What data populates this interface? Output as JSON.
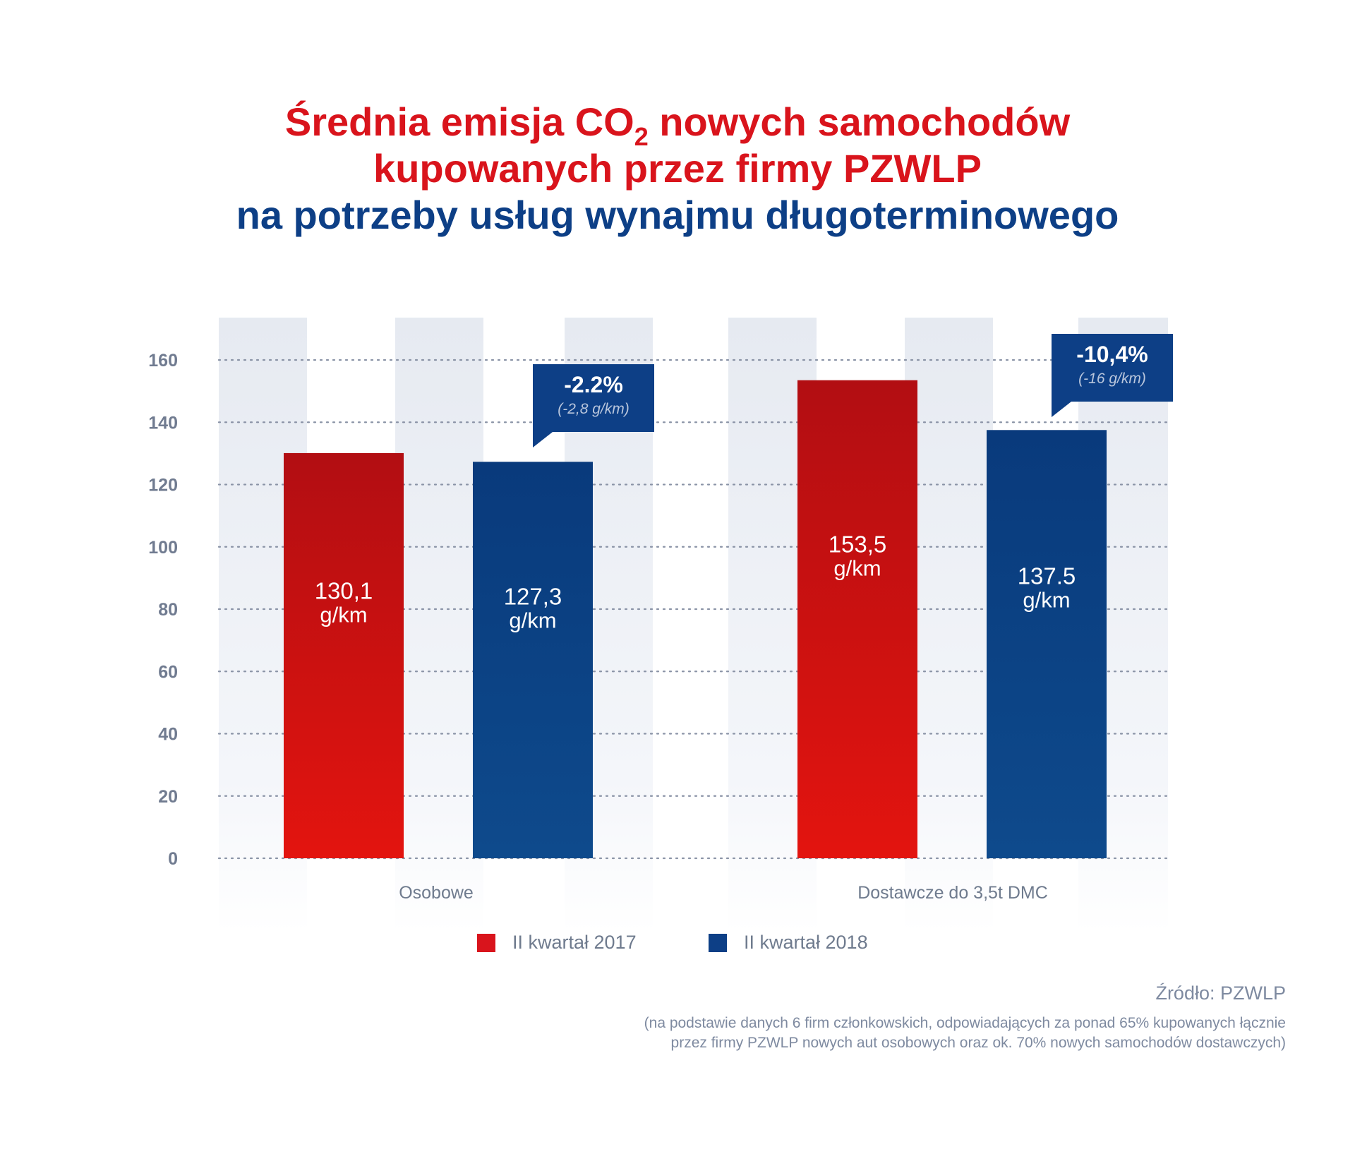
{
  "title": {
    "line1_pre": "Średnia emisja CO",
    "line1_sub": "2",
    "line1_post": " nowych samochodów",
    "line2": "kupowanych przez firmy PZWLP",
    "line3": "na potrzeby usług wynajmu długoterminowego"
  },
  "colors": {
    "title_red": "#d9141c",
    "title_blue": "#0d3f86",
    "series_2017": "#d9141c",
    "series_2018": "#0d3f86"
  },
  "legend": {
    "item1": "II kwartał 2017",
    "item2": "II kwartał 2018"
  },
  "source": {
    "line1": "Źródło: PZWLP",
    "line2": "(na podstawie danych 6 firm członkowskich, odpowiadających za ponad 65% kupowanych łącznie",
    "line3": "przez firmy PZWLP nowych aut osobowych oraz ok. 70% nowych samochodów dostawczych)"
  },
  "chart_data": {
    "type": "bar",
    "categories": [
      "Osobowe",
      "Dostawcze do 3,5t DMC"
    ],
    "series": [
      {
        "name": "II kwartał 2017",
        "values": [
          130.1,
          153.5
        ],
        "labels": [
          "130,1",
          "153,5"
        ],
        "color": "#d9141c"
      },
      {
        "name": "II kwartał 2018",
        "values": [
          127.3,
          137.5
        ],
        "labels": [
          "127,3",
          "137.5"
        ],
        "color": "#0d3f86"
      }
    ],
    "unit": "g/km",
    "ylim": [
      0,
      170
    ],
    "yticks": [
      0,
      20,
      40,
      60,
      80,
      100,
      120,
      140,
      160
    ],
    "grid": true,
    "legend_position": "bottom",
    "annotations": [
      {
        "category": "Osobowe",
        "main": "-2.2%",
        "detail": "(-2,8 g/km)"
      },
      {
        "category": "Dostawcze do 3,5t DMC",
        "main": "-10,4%",
        "detail": "(-16 g/km)"
      }
    ]
  }
}
